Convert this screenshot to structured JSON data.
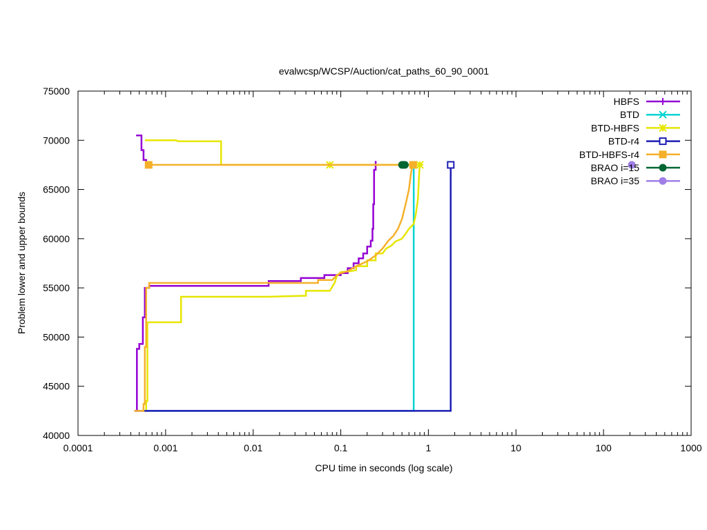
{
  "chart_data": {
    "type": "line",
    "title": "evalwcsp/WCSP/Auction/cat_paths_60_90_0001",
    "xlabel": "CPU time in seconds (log scale)",
    "ylabel": "Problem lower and upper bounds",
    "xscale": "log",
    "xlim": [
      0.0001,
      1000
    ],
    "ylim": [
      40000,
      75000
    ],
    "xticks": [
      {
        "value": 0.0001,
        "label": "0.0001"
      },
      {
        "value": 0.001,
        "label": "0.001"
      },
      {
        "value": 0.01,
        "label": "0.01"
      },
      {
        "value": 0.1,
        "label": "0.1"
      },
      {
        "value": 1,
        "label": "1"
      },
      {
        "value": 10,
        "label": "10"
      },
      {
        "value": 100,
        "label": "100"
      },
      {
        "value": 1000,
        "label": "1000"
      }
    ],
    "yticks": [
      {
        "value": 40000,
        "label": "40000"
      },
      {
        "value": 45000,
        "label": "45000"
      },
      {
        "value": 50000,
        "label": "50000"
      },
      {
        "value": 55000,
        "label": "55000"
      },
      {
        "value": 60000,
        "label": "60000"
      },
      {
        "value": 65000,
        "label": "65000"
      },
      {
        "value": 70000,
        "label": "70000"
      },
      {
        "value": 75000,
        "label": "75000"
      }
    ],
    "grid": false,
    "legend_position": "top-right",
    "series": [
      {
        "name": "HBFS",
        "color": "#9400d3",
        "marker": "plus",
        "lines": [
          [
            [
              0.00046,
              70500
            ],
            [
              0.00053,
              70500
            ],
            [
              0.00053,
              69000
            ],
            [
              0.00056,
              69000
            ],
            [
              0.00056,
              68000
            ],
            [
              0.0006,
              68000
            ],
            [
              0.0006,
              67700
            ]
          ],
          [
            [
              0.00046,
              42500
            ],
            [
              0.00047,
              42500
            ],
            [
              0.00047,
              48800
            ],
            [
              0.0005,
              48800
            ],
            [
              0.0005,
              49300
            ],
            [
              0.00055,
              49300
            ],
            [
              0.00055,
              52000
            ],
            [
              0.00058,
              52000
            ],
            [
              0.00058,
              55000
            ],
            [
              0.00065,
              55000
            ],
            [
              0.00065,
              55200
            ],
            [
              0.015,
              55200
            ],
            [
              0.015,
              55700
            ],
            [
              0.035,
              55700
            ],
            [
              0.035,
              56000
            ],
            [
              0.065,
              56000
            ],
            [
              0.065,
              56300
            ],
            [
              0.1,
              56300
            ],
            [
              0.1,
              56500
            ],
            [
              0.12,
              56500
            ],
            [
              0.12,
              57000
            ],
            [
              0.14,
              57000
            ],
            [
              0.14,
              57500
            ],
            [
              0.16,
              57500
            ],
            [
              0.16,
              58000
            ],
            [
              0.18,
              58000
            ],
            [
              0.18,
              58500
            ],
            [
              0.2,
              58500
            ],
            [
              0.2,
              59200
            ],
            [
              0.22,
              59200
            ],
            [
              0.22,
              59800
            ],
            [
              0.23,
              59800
            ],
            [
              0.23,
              61000
            ],
            [
              0.235,
              61000
            ],
            [
              0.235,
              63500
            ],
            [
              0.24,
              63500
            ],
            [
              0.24,
              67000
            ],
            [
              0.25,
              67000
            ],
            [
              0.25,
              67900
            ]
          ]
        ],
        "markers": []
      },
      {
        "name": "BTD",
        "color": "#00d4d4",
        "marker": "cross",
        "lines": [
          [
            [
              0.0006,
              42500
            ],
            [
              0.68,
              42500
            ],
            [
              0.68,
              67500
            ]
          ]
        ],
        "markers": []
      },
      {
        "name": "BTD-HBFS",
        "color": "#e6e600",
        "marker": "star",
        "lines": [
          [
            [
              0.00058,
              70000
            ],
            [
              0.0013,
              70000
            ],
            [
              0.0014,
              69900
            ],
            [
              0.0043,
              69900
            ],
            [
              0.0043,
              67500
            ],
            [
              0.8,
              67500
            ]
          ],
          [
            [
              0.00058,
              42500
            ],
            [
              0.0006,
              42500
            ],
            [
              0.0006,
              43500
            ],
            [
              0.00062,
              43500
            ],
            [
              0.00062,
              51500
            ],
            [
              0.0015,
              51500
            ],
            [
              0.0015,
              54100
            ],
            [
              0.015,
              54100
            ],
            [
              0.04,
              54200
            ],
            [
              0.04,
              54700
            ],
            [
              0.075,
              54700
            ],
            [
              0.085,
              55500
            ],
            [
              0.09,
              56200
            ],
            [
              0.1,
              56600
            ],
            [
              0.13,
              56700
            ],
            [
              0.15,
              56800
            ],
            [
              0.15,
              57200
            ],
            [
              0.2,
              57200
            ],
            [
              0.2,
              57800
            ],
            [
              0.25,
              57800
            ],
            [
              0.25,
              58500
            ],
            [
              0.3,
              58500
            ],
            [
              0.33,
              59000
            ],
            [
              0.38,
              59300
            ],
            [
              0.42,
              59700
            ],
            [
              0.5,
              60000
            ],
            [
              0.55,
              60500
            ],
            [
              0.6,
              61000
            ],
            [
              0.68,
              61500
            ],
            [
              0.72,
              62500
            ],
            [
              0.76,
              64000
            ],
            [
              0.78,
              66000
            ],
            [
              0.8,
              67800
            ]
          ]
        ],
        "markers": [
          [
            0.075,
            67500
          ],
          [
            0.8,
            67500
          ]
        ]
      },
      {
        "name": "BTD-r4",
        "color": "#1c1cb4",
        "marker": "open-square",
        "lines": [
          [
            [
              0.00044,
              42500
            ],
            [
              1.8,
              42500
            ],
            [
              1.8,
              67500
            ]
          ]
        ],
        "markers": [
          [
            1.8,
            67500
          ]
        ]
      },
      {
        "name": "BTD-HBFS-r4",
        "color": "#f5b02a",
        "marker": "filled-square",
        "lines": [
          [
            [
              0.0006,
              67500
            ],
            [
              0.68,
              67500
            ]
          ],
          [
            [
              0.00044,
              42500
            ],
            [
              0.00056,
              42500
            ],
            [
              0.00056,
              43200
            ],
            [
              0.00058,
              43200
            ],
            [
              0.00058,
              49000
            ],
            [
              0.0006,
              49000
            ],
            [
              0.0006,
              55000
            ],
            [
              0.00065,
              55000
            ],
            [
              0.00065,
              55500
            ],
            [
              0.055,
              55500
            ],
            [
              0.055,
              55800
            ],
            [
              0.08,
              55800
            ],
            [
              0.09,
              56300
            ],
            [
              0.1,
              56500
            ],
            [
              0.12,
              56700
            ],
            [
              0.15,
              57200
            ],
            [
              0.2,
              57700
            ],
            [
              0.25,
              58300
            ],
            [
              0.3,
              59000
            ],
            [
              0.35,
              59800
            ],
            [
              0.4,
              60300
            ],
            [
              0.45,
              61000
            ],
            [
              0.5,
              62000
            ],
            [
              0.55,
              63500
            ],
            [
              0.6,
              65000
            ],
            [
              0.63,
              66500
            ],
            [
              0.66,
              67700
            ]
          ]
        ],
        "markers": [
          [
            0.00064,
            67500
          ],
          [
            0.67,
            67500
          ]
        ]
      },
      {
        "name": "BRAO i=15",
        "color": "#006633",
        "marker": "filled-circle",
        "lines": [],
        "markers": [
          [
            0.5,
            67500
          ],
          [
            0.52,
            67500
          ],
          [
            0.54,
            67500
          ]
        ]
      },
      {
        "name": "BRAO i=35",
        "color": "#9f7fe6",
        "marker": "filled-circle",
        "lines": [],
        "markers": [
          [
            210,
            67500
          ]
        ]
      }
    ]
  }
}
